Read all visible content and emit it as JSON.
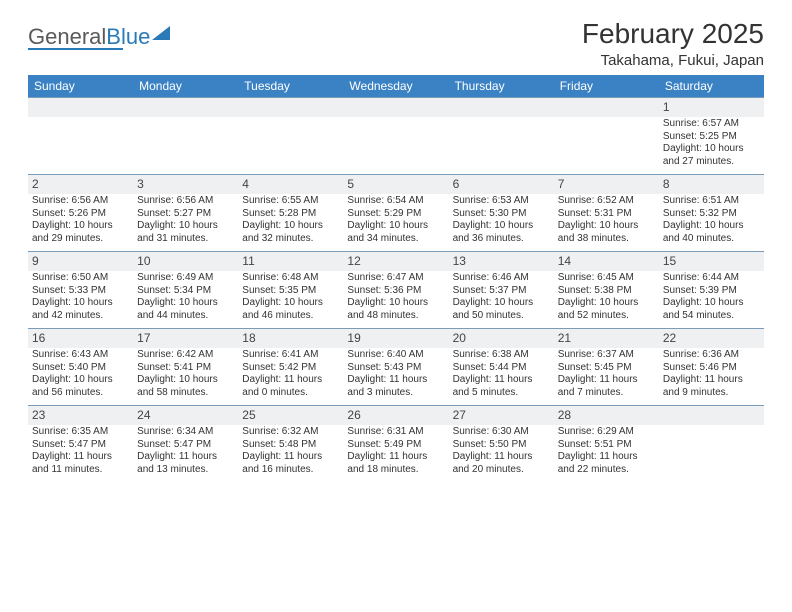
{
  "logo": {
    "part1": "General",
    "part2": "Blue"
  },
  "title": "February 2025",
  "location": "Takahama, Fukui, Japan",
  "colors": {
    "header_bg": "#3b82c4",
    "header_text": "#ffffff",
    "daynum_bg": "#eef0f1",
    "border": "#7a9cb8",
    "text": "#333333",
    "logo_gray": "#5a5a5a",
    "logo_blue": "#2a7ab8"
  },
  "weekdays": [
    "Sunday",
    "Monday",
    "Tuesday",
    "Wednesday",
    "Thursday",
    "Friday",
    "Saturday"
  ],
  "weeks": [
    {
      "nums": [
        "",
        "",
        "",
        "",
        "",
        "",
        "1"
      ],
      "details": [
        "",
        "",
        "",
        "",
        "",
        "",
        "Sunrise: 6:57 AM\nSunset: 5:25 PM\nDaylight: 10 hours and 27 minutes."
      ]
    },
    {
      "nums": [
        "2",
        "3",
        "4",
        "5",
        "6",
        "7",
        "8"
      ],
      "details": [
        "Sunrise: 6:56 AM\nSunset: 5:26 PM\nDaylight: 10 hours and 29 minutes.",
        "Sunrise: 6:56 AM\nSunset: 5:27 PM\nDaylight: 10 hours and 31 minutes.",
        "Sunrise: 6:55 AM\nSunset: 5:28 PM\nDaylight: 10 hours and 32 minutes.",
        "Sunrise: 6:54 AM\nSunset: 5:29 PM\nDaylight: 10 hours and 34 minutes.",
        "Sunrise: 6:53 AM\nSunset: 5:30 PM\nDaylight: 10 hours and 36 minutes.",
        "Sunrise: 6:52 AM\nSunset: 5:31 PM\nDaylight: 10 hours and 38 minutes.",
        "Sunrise: 6:51 AM\nSunset: 5:32 PM\nDaylight: 10 hours and 40 minutes."
      ]
    },
    {
      "nums": [
        "9",
        "10",
        "11",
        "12",
        "13",
        "14",
        "15"
      ],
      "details": [
        "Sunrise: 6:50 AM\nSunset: 5:33 PM\nDaylight: 10 hours and 42 minutes.",
        "Sunrise: 6:49 AM\nSunset: 5:34 PM\nDaylight: 10 hours and 44 minutes.",
        "Sunrise: 6:48 AM\nSunset: 5:35 PM\nDaylight: 10 hours and 46 minutes.",
        "Sunrise: 6:47 AM\nSunset: 5:36 PM\nDaylight: 10 hours and 48 minutes.",
        "Sunrise: 6:46 AM\nSunset: 5:37 PM\nDaylight: 10 hours and 50 minutes.",
        "Sunrise: 6:45 AM\nSunset: 5:38 PM\nDaylight: 10 hours and 52 minutes.",
        "Sunrise: 6:44 AM\nSunset: 5:39 PM\nDaylight: 10 hours and 54 minutes."
      ]
    },
    {
      "nums": [
        "16",
        "17",
        "18",
        "19",
        "20",
        "21",
        "22"
      ],
      "details": [
        "Sunrise: 6:43 AM\nSunset: 5:40 PM\nDaylight: 10 hours and 56 minutes.",
        "Sunrise: 6:42 AM\nSunset: 5:41 PM\nDaylight: 10 hours and 58 minutes.",
        "Sunrise: 6:41 AM\nSunset: 5:42 PM\nDaylight: 11 hours and 0 minutes.",
        "Sunrise: 6:40 AM\nSunset: 5:43 PM\nDaylight: 11 hours and 3 minutes.",
        "Sunrise: 6:38 AM\nSunset: 5:44 PM\nDaylight: 11 hours and 5 minutes.",
        "Sunrise: 6:37 AM\nSunset: 5:45 PM\nDaylight: 11 hours and 7 minutes.",
        "Sunrise: 6:36 AM\nSunset: 5:46 PM\nDaylight: 11 hours and 9 minutes."
      ]
    },
    {
      "nums": [
        "23",
        "24",
        "25",
        "26",
        "27",
        "28",
        ""
      ],
      "details": [
        "Sunrise: 6:35 AM\nSunset: 5:47 PM\nDaylight: 11 hours and 11 minutes.",
        "Sunrise: 6:34 AM\nSunset: 5:47 PM\nDaylight: 11 hours and 13 minutes.",
        "Sunrise: 6:32 AM\nSunset: 5:48 PM\nDaylight: 11 hours and 16 minutes.",
        "Sunrise: 6:31 AM\nSunset: 5:49 PM\nDaylight: 11 hours and 18 minutes.",
        "Sunrise: 6:30 AM\nSunset: 5:50 PM\nDaylight: 11 hours and 20 minutes.",
        "Sunrise: 6:29 AM\nSunset: 5:51 PM\nDaylight: 11 hours and 22 minutes.",
        ""
      ]
    }
  ]
}
